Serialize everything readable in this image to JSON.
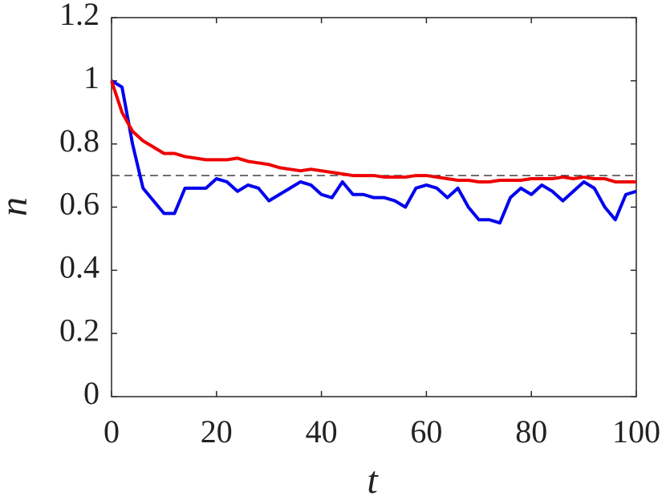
{
  "chart_data": {
    "type": "line",
    "x_label": "t",
    "y_label": "n",
    "x": [
      0,
      2,
      4,
      6,
      8,
      10,
      12,
      14,
      16,
      18,
      20,
      22,
      24,
      26,
      28,
      30,
      32,
      34,
      36,
      38,
      40,
      42,
      44,
      46,
      48,
      50,
      52,
      54,
      56,
      58,
      60,
      62,
      64,
      66,
      68,
      70,
      72,
      74,
      76,
      78,
      80,
      82,
      84,
      86,
      88,
      90,
      92,
      94,
      96,
      98,
      100
    ],
    "series": [
      {
        "color": "#0000ee",
        "values": [
          1.0,
          0.98,
          0.8,
          0.66,
          0.62,
          0.58,
          0.58,
          0.66,
          0.66,
          0.66,
          0.69,
          0.68,
          0.65,
          0.67,
          0.66,
          0.62,
          0.64,
          0.66,
          0.68,
          0.67,
          0.64,
          0.63,
          0.68,
          0.64,
          0.64,
          0.63,
          0.63,
          0.62,
          0.6,
          0.66,
          0.67,
          0.66,
          0.63,
          0.66,
          0.6,
          0.56,
          0.56,
          0.55,
          0.63,
          0.66,
          0.64,
          0.67,
          0.65,
          0.62,
          0.65,
          0.68,
          0.66,
          0.6,
          0.56,
          0.64,
          0.65
        ]
      },
      {
        "color": "#ee0000",
        "values": [
          1.0,
          0.9,
          0.84,
          0.81,
          0.79,
          0.77,
          0.77,
          0.76,
          0.755,
          0.75,
          0.75,
          0.75,
          0.755,
          0.745,
          0.74,
          0.735,
          0.725,
          0.72,
          0.715,
          0.72,
          0.715,
          0.71,
          0.705,
          0.7,
          0.7,
          0.7,
          0.695,
          0.695,
          0.695,
          0.7,
          0.7,
          0.695,
          0.69,
          0.685,
          0.685,
          0.68,
          0.68,
          0.685,
          0.685,
          0.685,
          0.69,
          0.69,
          0.69,
          0.695,
          0.69,
          0.695,
          0.69,
          0.69,
          0.68,
          0.68,
          0.68
        ]
      }
    ],
    "reference_line": 0.7,
    "xlim": [
      0,
      100
    ],
    "xticks": [
      0,
      20,
      40,
      60,
      80,
      100
    ],
    "ylim": [
      0,
      1.2
    ],
    "yticks": [
      0,
      0.2,
      0.4,
      0.6,
      0.8,
      1,
      1.2
    ],
    "grid": false
  }
}
